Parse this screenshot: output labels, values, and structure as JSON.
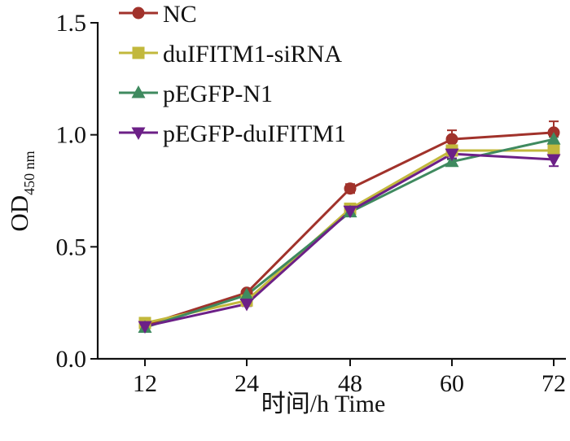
{
  "chart_data": {
    "type": "line",
    "categories": [
      "12",
      "24",
      "48",
      "60",
      "72"
    ],
    "ylim": [
      0,
      1.5
    ],
    "yticks": [
      0.0,
      0.5,
      1.0,
      1.5
    ],
    "ytick_labels": [
      "0.0",
      "0.5",
      "1.0",
      "1.5"
    ],
    "xlabel": "时间/h  Time",
    "ylabel_main": "OD",
    "ylabel_sub": "450 nm",
    "legend_position": "top-left",
    "series": [
      {
        "name": "NC",
        "color": "#a1322b",
        "marker": "circle",
        "values": [
          0.15,
          0.295,
          0.76,
          0.98,
          1.01
        ],
        "errors": [
          0.01,
          0.01,
          0.02,
          0.04,
          0.05
        ]
      },
      {
        "name": "duIFITM1-siRNA",
        "color": "#c2b83c",
        "marker": "square",
        "values": [
          0.16,
          0.26,
          0.67,
          0.93,
          0.93
        ],
        "errors": [
          0.01,
          0.01,
          0.01,
          0.01,
          0.01
        ]
      },
      {
        "name": "pEGFP-N1",
        "color": "#3f8a5f",
        "marker": "triangle-up",
        "values": [
          0.14,
          0.285,
          0.655,
          0.88,
          0.98
        ],
        "errors": [
          0.01,
          0.01,
          0.01,
          0.01,
          0.01
        ]
      },
      {
        "name": "pEGFP-duIFITM1",
        "color": "#6c2087",
        "marker": "triangle-down",
        "values": [
          0.145,
          0.245,
          0.66,
          0.915,
          0.89
        ],
        "errors": [
          0.01,
          0.01,
          0.01,
          0.02,
          0.03
        ]
      }
    ]
  }
}
